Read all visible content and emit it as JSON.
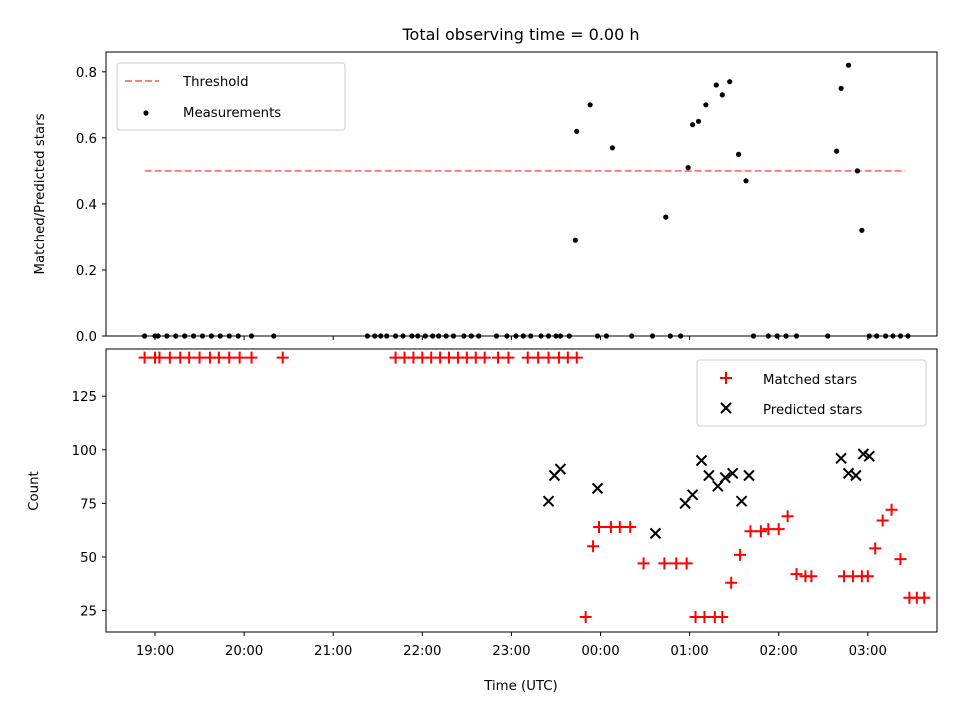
{
  "chart_data": [
    {
      "type": "scatter",
      "title": "Total observing time = 0.00 h",
      "xlabel": "",
      "ylabel": "Matched/Predicted stars",
      "ylim": [
        0,
        0.86
      ],
      "yticks": [
        "0.0",
        "0.2",
        "0.4",
        "0.6",
        "0.8"
      ],
      "ytick_values": [
        0.0,
        0.2,
        0.4,
        0.6,
        0.8
      ],
      "grid": false,
      "legend": "top-left",
      "colors": {
        "threshold": "#ff7f7f",
        "measurements": "#000000"
      },
      "series": [
        {
          "name": "Threshold",
          "kind": "dashed-line",
          "x": [
            "18:53",
            "03:25"
          ],
          "values": [
            0.5,
            0.5
          ]
        },
        {
          "name": "Measurements",
          "kind": "dot",
          "x": [
            "18:53",
            "19:00",
            "19:02",
            "19:08",
            "19:14",
            "19:20",
            "19:26",
            "19:32",
            "19:38",
            "19:44",
            "19:50",
            "19:56",
            "20:05",
            "20:20",
            "21:23",
            "21:28",
            "21:32",
            "21:36",
            "21:42",
            "21:47",
            "21:53",
            "21:57",
            "22:02",
            "22:07",
            "22:11",
            "22:16",
            "22:21",
            "22:28",
            "22:33",
            "22:38",
            "22:50",
            "22:57",
            "23:03",
            "23:08",
            "23:13",
            "23:20",
            "23:25",
            "23:30",
            "23:33",
            "23:39",
            "23:43",
            "23:44",
            "23:53",
            "23:58",
            "00:04",
            "00:08",
            "00:21",
            "00:35",
            "00:44",
            "00:47",
            "00:54",
            "00:59",
            "01:02",
            "01:06",
            "01:11",
            "01:18",
            "01:22",
            "01:27",
            "01:33",
            "01:38",
            "01:43",
            "01:53",
            "01:59",
            "02:05",
            "02:12",
            "02:33",
            "02:39",
            "02:42",
            "02:47",
            "02:53",
            "02:56",
            "03:01",
            "03:06",
            "03:12",
            "03:17",
            "03:22",
            "03:27"
          ],
          "values": [
            0,
            0,
            0,
            0,
            0,
            0,
            0,
            0,
            0,
            0,
            0,
            0,
            0,
            0,
            0,
            0,
            0,
            0,
            0,
            0,
            0,
            0,
            0,
            0,
            0,
            0,
            0,
            0,
            0,
            0,
            0,
            0,
            0,
            0,
            0,
            0,
            0,
            0,
            0,
            0,
            0.29,
            0.62,
            0.7,
            0,
            0,
            0.57,
            0,
            0,
            0.36,
            0,
            0,
            0.51,
            0.64,
            0.65,
            0.7,
            0.76,
            0.73,
            0.77,
            0.55,
            0.47,
            0,
            0,
            0,
            0,
            0,
            0,
            0.56,
            0.75,
            0.82,
            0.5,
            0.32,
            0,
            0,
            0,
            0,
            0,
            0
          ]
        }
      ]
    },
    {
      "type": "scatter",
      "title": "",
      "xlabel": "Time (UTC)",
      "ylabel": "Count",
      "ylim": [
        15,
        147
      ],
      "yticks": [
        "25",
        "50",
        "75",
        "100",
        "125"
      ],
      "ytick_values": [
        25,
        50,
        75,
        100,
        125
      ],
      "xticks": [
        "19:00",
        "20:00",
        "21:00",
        "22:00",
        "23:00",
        "00:00",
        "01:00",
        "02:00",
        "03:00"
      ],
      "grid": false,
      "legend": "top-right",
      "colors": {
        "matched": "#ff0000",
        "predicted": "#000000"
      },
      "series": [
        {
          "name": "Matched stars",
          "kind": "plus",
          "x": [
            "18:53",
            "19:00",
            "19:03",
            "19:10",
            "19:17",
            "19:23",
            "19:30",
            "19:37",
            "19:43",
            "19:50",
            "19:57",
            "20:05",
            "20:26",
            "21:42",
            "21:48",
            "21:54",
            "22:00",
            "22:06",
            "22:12",
            "22:18",
            "22:24",
            "22:30",
            "22:36",
            "22:42",
            "22:51",
            "22:58",
            "23:11",
            "23:18",
            "23:25",
            "23:32",
            "23:38",
            "23:44",
            "23:50",
            "23:55",
            "23:59",
            "00:07",
            "00:13",
            "00:20",
            "00:29",
            "00:43",
            "00:51",
            "00:58",
            "01:04",
            "01:10",
            "01:17",
            "01:22",
            "01:28",
            "01:34",
            "01:41",
            "01:48",
            "01:53",
            "02:00",
            "02:06",
            "02:12",
            "02:18",
            "02:22",
            "02:44",
            "02:50",
            "02:56",
            "03:00",
            "03:05",
            "03:10",
            "03:16",
            "03:22",
            "03:28",
            "03:33",
            "03:38"
          ],
          "values": [
            143,
            143,
            143,
            143,
            143,
            143,
            143,
            143,
            143,
            143,
            143,
            143,
            143,
            143,
            143,
            143,
            143,
            143,
            143,
            143,
            143,
            143,
            143,
            143,
            143,
            143,
            143,
            143,
            143,
            143,
            143,
            143,
            22,
            55,
            64,
            64,
            64,
            64,
            47,
            47,
            47,
            47,
            22,
            22,
            22,
            22,
            38,
            51,
            62,
            62,
            63,
            63,
            69,
            42,
            41,
            41,
            41,
            41,
            41,
            41,
            54,
            67,
            72,
            49,
            31,
            31,
            31
          ],
          "note_x_alignment": "values aligned by index"
        },
        {
          "name": "Predicted stars",
          "kind": "x",
          "x": [
            "23:25",
            "23:29",
            "23:33",
            "23:58",
            "00:37",
            "00:57",
            "01:02",
            "01:08",
            "01:13",
            "01:19",
            "01:24",
            "01:29",
            "01:35",
            "01:40",
            "02:42",
            "02:47",
            "02:52",
            "02:57",
            "03:01"
          ],
          "values": [
            76,
            88,
            91,
            82,
            61,
            75,
            79,
            95,
            88,
            83,
            87,
            89,
            76,
            88,
            96,
            89,
            88,
            98,
            97
          ]
        }
      ]
    }
  ]
}
